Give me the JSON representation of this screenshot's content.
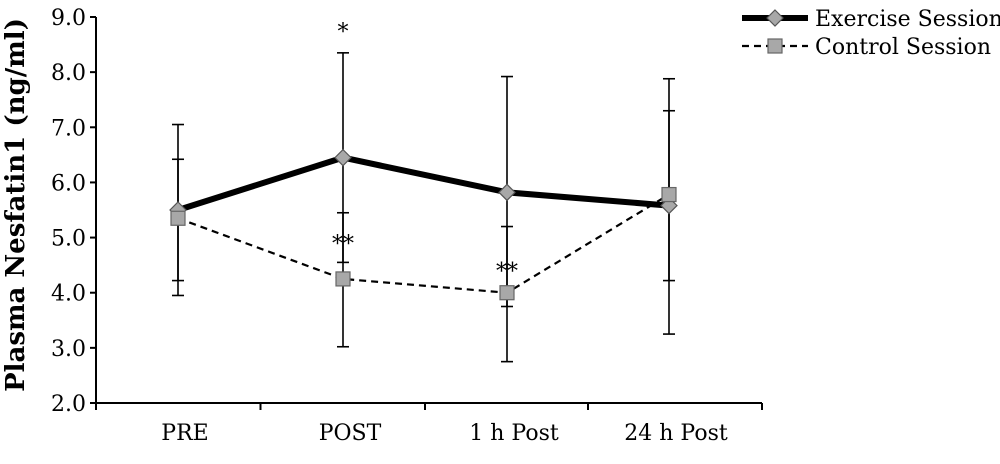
{
  "chart_data": {
    "type": "line",
    "title": "",
    "xlabel": "",
    "ylabel": "Plasma Nesfatin1 (ng/ml)",
    "categories": [
      "PRE",
      "POST",
      "1 h Post",
      "24 h Post"
    ],
    "ylim": [
      2.0,
      9.0
    ],
    "yticks": [
      "2.0",
      "3.0",
      "4.0",
      "5.0",
      "6.0",
      "7.0",
      "8.0",
      "9.0"
    ],
    "grid": false,
    "legend_position": "top-right",
    "series": [
      {
        "name": "Exercise Session",
        "values": [
          5.5,
          6.45,
          5.82,
          5.58
        ],
        "error_low": [
          3.95,
          4.55,
          3.75,
          3.25
        ],
        "error_high": [
          7.05,
          8.35,
          7.92,
          7.88
        ],
        "line_style": "solid",
        "marker": "diamond",
        "line_color": "#000000",
        "marker_color": "#a8a8a8"
      },
      {
        "name": "Control Session",
        "values": [
          5.35,
          4.25,
          4.0,
          5.78
        ],
        "error_low": [
          4.22,
          3.02,
          2.75,
          4.22
        ],
        "error_high": [
          6.42,
          5.45,
          5.2,
          7.3
        ],
        "line_style": "dashed",
        "marker": "square",
        "line_color": "#000000",
        "marker_color": "#a8a8a8"
      }
    ],
    "annotations": [
      {
        "category": "POST",
        "value": 8.75,
        "text": "*"
      },
      {
        "category": "POST",
        "value": 4.9,
        "text": "**"
      },
      {
        "category": "1 h Post",
        "value": 4.4,
        "text": "**"
      }
    ]
  }
}
